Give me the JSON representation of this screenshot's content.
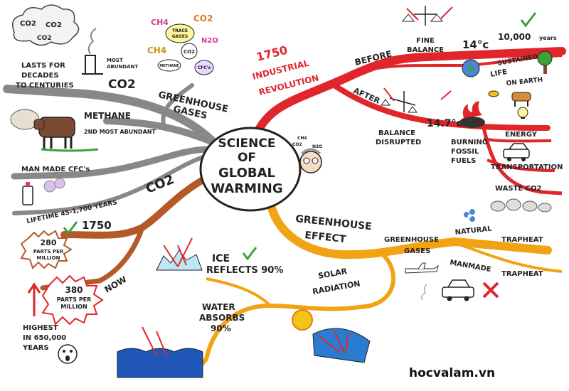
{
  "center": {
    "line1": "SCIENCE",
    "line2": "OF",
    "line3": "GLOBAL",
    "line4": "WARMING"
  },
  "scientist_formula": {
    "ch4": "CH4",
    "co2": "CO2",
    "n2o": "N2O"
  },
  "greenhouse_gases": {
    "label_line1": "GREENHOUSE",
    "label_line2": "GASES",
    "trace_gases": [
      "CH4",
      "CO2",
      "TRACE",
      "GASES",
      "N2O",
      "CH4",
      "CO2",
      "METHANE",
      "CFC's"
    ],
    "co2": {
      "label": "CO2",
      "tag": "MOST",
      "tag2": "ABUNDANT",
      "note_line1": "LASTS FOR",
      "note_line2": "DECADES",
      "note_line3": "TO CENTURIES",
      "cloud_words": [
        "CO2",
        "CO2",
        "CO2"
      ]
    },
    "methane": {
      "label": "METHANE",
      "note": "2ND MOST ABUNDANT"
    },
    "cfcs": {
      "label": "MAN MADE CFC's",
      "note": "LIFETIME 45-1,700 YEARS"
    }
  },
  "industrial_revolution": {
    "year": "1750",
    "label_line1": "INDUSTRIAL",
    "label_line2": "REVOLUTION",
    "before": {
      "label": "BEFORE",
      "fine_line1": "FINE",
      "fine_line2": "BALANCE",
      "temp": "14°c",
      "years": "10,000",
      "years_unit": "years",
      "sustained_line1": "SUSTAINED",
      "sustained_line2": "LIFE",
      "sustained_line3": "ON EARTH"
    },
    "after": {
      "label": "AFTER",
      "temp": "14.7°c",
      "balance_line1": "BALANCE",
      "balance_line2": "DISRUPTED",
      "burning_line1": "BURNING",
      "burning_line2": "FOSSIL",
      "burning_line3": "FUELS",
      "energy": "ENERGY",
      "transportation": "TRANSPORTATION",
      "waste": "WASTE CO2"
    }
  },
  "co2_branch": {
    "label": "CO2",
    "year": "1750",
    "ppm_1750_line1": "280",
    "ppm_1750_line2": "PARTS PER",
    "ppm_1750_line3": "MILLION",
    "now": "NOW",
    "ppm_now_line1": "380",
    "ppm_now_line2": "PARTS PER",
    "ppm_now_line3": "MILLION",
    "highest_line1": "HIGHEST",
    "highest_line2": "IN 650,000",
    "highest_line3": "YEARS"
  },
  "greenhouse_effect": {
    "label_line1": "GREENHOUSE",
    "label_line2": "EFFECT",
    "gases_line1": "GREENHOUSE",
    "gases_line2": "GASES",
    "natural": "NATURAL",
    "trapheat1": "TRAPHEAT",
    "manmade": "MANMADE",
    "trapheat2": "TRAPHEAT",
    "solar_line1": "SOLAR",
    "solar_line2": "RADIATION",
    "ice_line1": "ICE",
    "ice_line2": "REFLECTS 90%",
    "water_line1": "WATER",
    "water_line2": "ABSORBS",
    "water_line3": "90%"
  },
  "watermark": "hocvalam.vn",
  "colors": {
    "grey_branch": "#8a8787",
    "red_branch": "#e0262b",
    "brown_branch": "#b4592a",
    "orange_branch": "#f2a313",
    "green_check": "#3aa238",
    "ink": "#222222"
  }
}
